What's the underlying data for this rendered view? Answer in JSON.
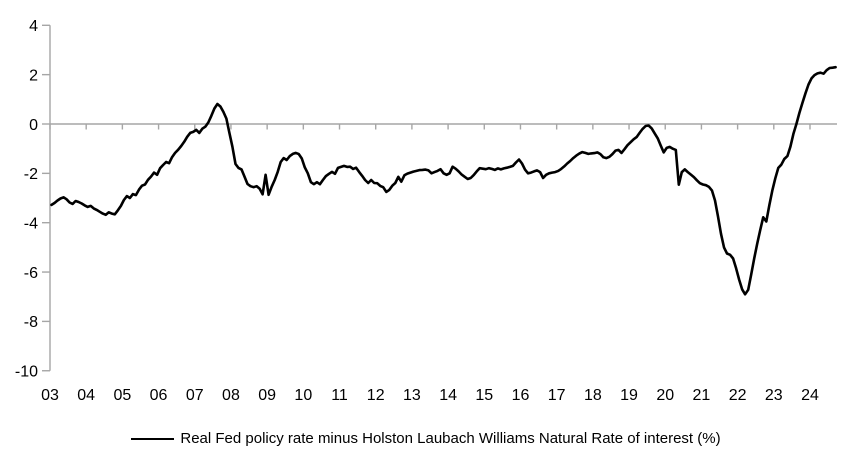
{
  "chart_data": {
    "type": "line",
    "title": "",
    "x_start": "2003-01",
    "x_end": "2024-09",
    "x_frequency": "monthly",
    "x_tick_labels": [
      "03",
      "04",
      "05",
      "06",
      "07",
      "08",
      "09",
      "10",
      "11",
      "12",
      "13",
      "14",
      "15",
      "16",
      "17",
      "18",
      "19",
      "20",
      "21",
      "22",
      "23",
      "24"
    ],
    "y_ticks": [
      4,
      2,
      0,
      -2,
      -4,
      -6,
      -8,
      -10
    ],
    "ylim": [
      -10,
      4
    ],
    "grid": false,
    "zero_axis": true,
    "axis_color": "#a6a6a6",
    "line_color": "#000000",
    "text_color": "#000000",
    "legend_position": "bottom-center",
    "series": [
      {
        "name": "Real Fed policy rate minus Holston Laubach Williams Natural Rate of interest (%)",
        "monthly_values_by_year": {
          "2003": [
            -3.28,
            -3.2,
            -3.1,
            -3.02,
            -2.97,
            -3.05,
            -3.18,
            -3.24,
            -3.12,
            -3.16,
            -3.22,
            -3.3
          ],
          "2004": [
            -3.36,
            -3.32,
            -3.42,
            -3.48,
            -3.56,
            -3.63,
            -3.68,
            -3.58,
            -3.63,
            -3.66,
            -3.5,
            -3.32
          ],
          "2005": [
            -3.08,
            -2.92,
            -3.0,
            -2.84,
            -2.88,
            -2.66,
            -2.5,
            -2.45,
            -2.26,
            -2.13,
            -1.97,
            -2.06
          ],
          "2006": [
            -1.79,
            -1.66,
            -1.54,
            -1.59,
            -1.34,
            -1.17,
            -1.04,
            -0.89,
            -0.72,
            -0.52,
            -0.36,
            -0.32
          ],
          "2007": [
            -0.24,
            -0.36,
            -0.19,
            -0.11,
            0.06,
            0.33,
            0.63,
            0.81,
            0.71,
            0.49,
            0.22,
            -0.36
          ],
          "2008": [
            -0.92,
            -1.62,
            -1.78,
            -1.84,
            -2.13,
            -2.43,
            -2.52,
            -2.56,
            -2.52,
            -2.62,
            -2.85,
            -2.06
          ],
          "2009": [
            -2.87,
            -2.54,
            -2.27,
            -1.94,
            -1.54,
            -1.38,
            -1.46,
            -1.3,
            -1.21,
            -1.17,
            -1.22,
            -1.4
          ],
          "2010": [
            -1.76,
            -2.0,
            -2.36,
            -2.44,
            -2.36,
            -2.44,
            -2.27,
            -2.11,
            -2.02,
            -1.94,
            -2.02,
            -1.78
          ],
          "2011": [
            -1.74,
            -1.7,
            -1.74,
            -1.73,
            -1.82,
            -1.77,
            -1.94,
            -2.1,
            -2.27,
            -2.39,
            -2.27,
            -2.39
          ],
          "2012": [
            -2.4,
            -2.51,
            -2.56,
            -2.75,
            -2.67,
            -2.5,
            -2.39,
            -2.14,
            -2.34,
            -2.08,
            -2.01,
            -1.97
          ],
          "2013": [
            -1.93,
            -1.9,
            -1.87,
            -1.86,
            -1.85,
            -1.88,
            -2.0,
            -1.95,
            -1.9,
            -1.83,
            -2.0,
            -2.06
          ],
          "2014": [
            -2.0,
            -1.73,
            -1.81,
            -1.92,
            -2.05,
            -2.14,
            -2.23,
            -2.19,
            -2.07,
            -1.92,
            -1.79,
            -1.81
          ],
          "2015": [
            -1.83,
            -1.79,
            -1.82,
            -1.86,
            -1.8,
            -1.84,
            -1.8,
            -1.77,
            -1.74,
            -1.7,
            -1.56,
            -1.44
          ],
          "2016": [
            -1.6,
            -1.85,
            -2.0,
            -1.97,
            -1.92,
            -1.88,
            -1.95,
            -2.19,
            -2.06,
            -2.0,
            -1.97,
            -1.95
          ],
          "2017": [
            -1.9,
            -1.82,
            -1.72,
            -1.6,
            -1.5,
            -1.38,
            -1.28,
            -1.2,
            -1.14,
            -1.17,
            -1.21,
            -1.19
          ],
          "2018": [
            -1.18,
            -1.15,
            -1.22,
            -1.35,
            -1.38,
            -1.33,
            -1.22,
            -1.08,
            -1.05,
            -1.17,
            -1.02,
            -0.86
          ],
          "2019": [
            -0.74,
            -0.62,
            -0.53,
            -0.36,
            -0.2,
            -0.08,
            -0.06,
            -0.18,
            -0.38,
            -0.58,
            -0.87,
            -1.15
          ],
          "2020": [
            -0.97,
            -0.93,
            -1.0,
            -1.05,
            -2.46,
            -1.95,
            -1.84,
            -1.95,
            -2.05,
            -2.15,
            -2.28,
            -2.4
          ],
          "2021": [
            -2.45,
            -2.48,
            -2.55,
            -2.7,
            -3.1,
            -3.75,
            -4.45,
            -5.0,
            -5.25,
            -5.3,
            -5.45,
            -5.85
          ],
          "2022": [
            -6.3,
            -6.7,
            -6.9,
            -6.72,
            -6.1,
            -5.45,
            -4.85,
            -4.3,
            -3.78,
            -3.95,
            -3.3,
            -2.7
          ],
          "2023": [
            -2.2,
            -1.78,
            -1.65,
            -1.42,
            -1.3,
            -0.92,
            -0.4,
            0.0,
            0.45,
            0.85,
            1.25,
            1.6
          ],
          "2024": [
            1.85,
            1.98,
            2.05,
            2.08,
            2.04,
            2.18,
            2.27,
            2.28,
            2.3
          ]
        }
      }
    ]
  }
}
